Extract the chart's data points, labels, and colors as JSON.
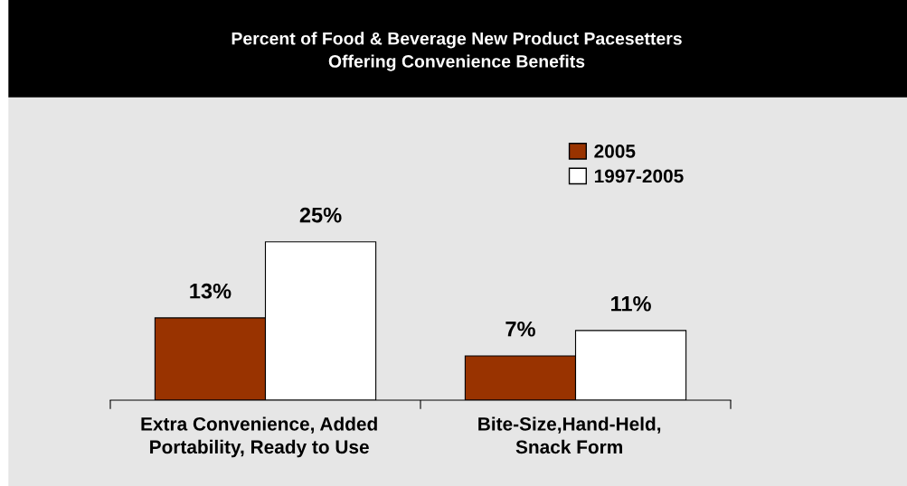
{
  "chart_data": {
    "type": "bar",
    "title": "Percent of Food & Beverage New Product Pacesetters\nOffering Convenience Benefits",
    "categories": [
      "Extra Convenience, Added\nPortability, Ready to Use",
      "Bite-Size,Hand-Held,\nSnack Form"
    ],
    "series": [
      {
        "name": "2005",
        "color": "#993300",
        "values": [
          13,
          7
        ],
        "value_labels": [
          "13%",
          "7%"
        ]
      },
      {
        "name": "1997-2005",
        "color": "#ffffff",
        "values": [
          25,
          11
        ],
        "value_labels": [
          "25%",
          "11%"
        ]
      }
    ],
    "tick_labels": "x",
    "grid": false,
    "legend": "top right"
  }
}
